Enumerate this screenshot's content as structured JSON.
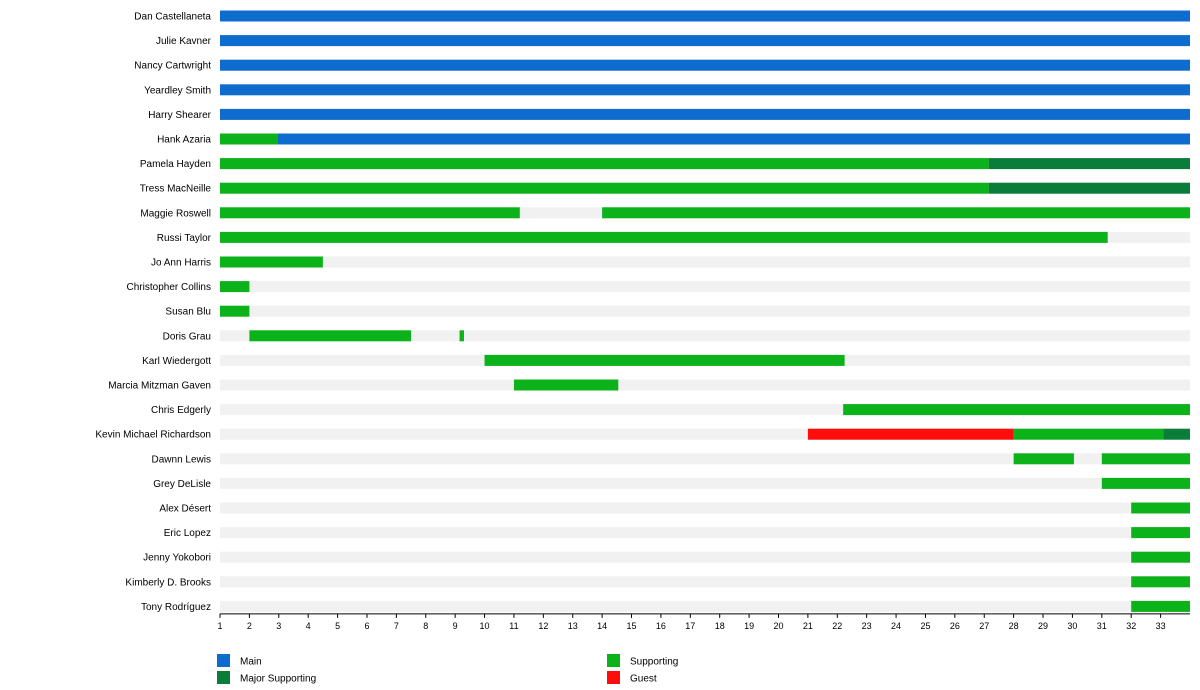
{
  "chart_data": {
    "type": "timeline",
    "title": "",
    "xlabel": "",
    "ylabel": "",
    "x_ticks": [
      1,
      2,
      3,
      4,
      5,
      6,
      7,
      8,
      9,
      10,
      11,
      12,
      13,
      14,
      15,
      16,
      17,
      18,
      19,
      20,
      21,
      22,
      23,
      24,
      25,
      26,
      27,
      28,
      29,
      30,
      31,
      32,
      33
    ],
    "xlim": [
      1,
      34
    ],
    "grid": false,
    "legend": [
      {
        "name": "Main",
        "color": "#0f6ccf"
      },
      {
        "name": "Supporting",
        "color": "#0cb21a"
      },
      {
        "name": "Major Supporting",
        "color": "#0a7d3a"
      },
      {
        "name": "Guest",
        "color": "#ff0c0c"
      }
    ],
    "rows": [
      {
        "name": "Dan Castellaneta",
        "segments": [
          {
            "start": 1,
            "end": 34,
            "status": "Main"
          }
        ]
      },
      {
        "name": "Julie Kavner",
        "segments": [
          {
            "start": 1,
            "end": 34,
            "status": "Main"
          }
        ]
      },
      {
        "name": "Nancy Cartwright",
        "segments": [
          {
            "start": 1,
            "end": 34,
            "status": "Main"
          }
        ]
      },
      {
        "name": "Yeardley Smith",
        "segments": [
          {
            "start": 1,
            "end": 34,
            "status": "Main"
          }
        ]
      },
      {
        "name": "Harry Shearer",
        "segments": [
          {
            "start": 1,
            "end": 34,
            "status": "Main"
          }
        ]
      },
      {
        "name": "Hank Azaria",
        "segments": [
          {
            "start": 1,
            "end": 2.95,
            "status": "Supporting"
          },
          {
            "start": 2.95,
            "end": 34,
            "status": "Main"
          }
        ]
      },
      {
        "name": "Pamela Hayden",
        "segments": [
          {
            "start": 1,
            "end": 27.15,
            "status": "Supporting"
          },
          {
            "start": 27.15,
            "end": 34,
            "status": "Major Supporting"
          }
        ]
      },
      {
        "name": "Tress MacNeille",
        "segments": [
          {
            "start": 1,
            "end": 27.15,
            "status": "Supporting"
          },
          {
            "start": 27.15,
            "end": 34,
            "status": "Major Supporting"
          }
        ]
      },
      {
        "name": "Maggie Roswell",
        "segments": [
          {
            "start": 1,
            "end": 11.2,
            "status": "Supporting"
          },
          {
            "start": 14,
            "end": 34,
            "status": "Supporting"
          }
        ]
      },
      {
        "name": "Russi Taylor",
        "segments": [
          {
            "start": 1,
            "end": 31.2,
            "status": "Supporting"
          }
        ]
      },
      {
        "name": "Jo Ann Harris",
        "segments": [
          {
            "start": 1,
            "end": 4.5,
            "status": "Supporting"
          }
        ]
      },
      {
        "name": "Christopher Collins",
        "segments": [
          {
            "start": 1,
            "end": 2,
            "status": "Supporting"
          }
        ]
      },
      {
        "name": "Susan Blu",
        "segments": [
          {
            "start": 1,
            "end": 2,
            "status": "Supporting"
          }
        ]
      },
      {
        "name": "Doris Grau",
        "segments": [
          {
            "start": 2,
            "end": 7.5,
            "status": "Supporting"
          },
          {
            "start": 9.15,
            "end": 9.3,
            "status": "Supporting"
          }
        ]
      },
      {
        "name": "Karl Wiedergott",
        "segments": [
          {
            "start": 10,
            "end": 22.25,
            "status": "Supporting"
          }
        ]
      },
      {
        "name": "Marcia Mitzman Gaven",
        "segments": [
          {
            "start": 11,
            "end": 14.55,
            "status": "Supporting"
          }
        ]
      },
      {
        "name": "Chris Edgerly",
        "segments": [
          {
            "start": 22.2,
            "end": 34,
            "status": "Supporting"
          }
        ]
      },
      {
        "name": "Kevin Michael Richardson",
        "segments": [
          {
            "start": 21,
            "end": 28,
            "status": "Guest"
          },
          {
            "start": 28,
            "end": 33.1,
            "status": "Supporting"
          },
          {
            "start": 33.1,
            "end": 34,
            "status": "Major Supporting"
          }
        ]
      },
      {
        "name": "Dawnn Lewis",
        "segments": [
          {
            "start": 28,
            "end": 30.05,
            "status": "Supporting"
          },
          {
            "start": 31,
            "end": 34,
            "status": "Supporting"
          }
        ]
      },
      {
        "name": "Grey DeLisle",
        "segments": [
          {
            "start": 31,
            "end": 34,
            "status": "Supporting"
          }
        ]
      },
      {
        "name": "Alex Désert",
        "segments": [
          {
            "start": 32,
            "end": 34,
            "status": "Supporting"
          }
        ]
      },
      {
        "name": "Eric Lopez",
        "segments": [
          {
            "start": 32,
            "end": 34,
            "status": "Supporting"
          }
        ]
      },
      {
        "name": "Jenny Yokobori",
        "segments": [
          {
            "start": 32,
            "end": 34,
            "status": "Supporting"
          }
        ]
      },
      {
        "name": "Kimberly D. Brooks",
        "segments": [
          {
            "start": 32,
            "end": 34,
            "status": "Supporting"
          }
        ]
      },
      {
        "name": "Tony Rodríguez",
        "segments": [
          {
            "start": 32,
            "end": 34,
            "status": "Supporting"
          }
        ]
      }
    ]
  }
}
